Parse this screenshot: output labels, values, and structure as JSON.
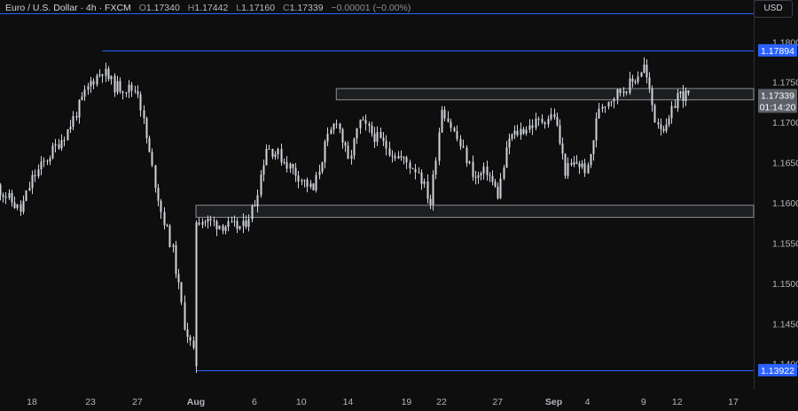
{
  "header": {
    "symbol": "Euro / U.S. Dollar · 4h · FXCM",
    "open_label": "O",
    "open": "1.17340",
    "high_label": "H",
    "high": "1.17442",
    "low_label": "L",
    "low": "1.17160",
    "close_label": "C",
    "close": "1.17339",
    "change": "−0.00001 (−0.00%)"
  },
  "currency_button": "USD",
  "colors": {
    "background": "#0e0e0e",
    "candle": "#d1d4dc",
    "horizontal_line": "#2962ff",
    "zone_border": "#8a8d93",
    "zone_fill": "#2a2c30",
    "label_blue": "#2962ff",
    "label_grey": "#5d6068"
  },
  "chart_data": {
    "type": "candlestick",
    "symbol": "EURUSD",
    "timeframe": "4h",
    "x_tick_labels": [
      "18",
      "23",
      "27",
      "Aug",
      "6",
      "10",
      "14",
      "19",
      "22",
      "27",
      "Sep",
      "4",
      "9",
      "12",
      "17"
    ],
    "y_tick_labels": [
      "1.18000",
      "1.17500",
      "1.17000",
      "1.16500",
      "1.16000",
      "1.15500",
      "1.15000",
      "1.14500",
      "1.14000"
    ],
    "ylim": [
      1.1392,
      1.1808
    ],
    "price_labels": [
      {
        "text": "1.17894",
        "value": 1.17894,
        "style": "blue"
      },
      {
        "text": "1.17339",
        "value": 1.17339,
        "style": "grey"
      },
      {
        "text": "01:14:20",
        "value": 1.17339,
        "style": "grey-countdown"
      },
      {
        "text": "1.13922",
        "value": 1.13922,
        "style": "blue"
      }
    ],
    "horizontal_lines": [
      {
        "value": 1.17894,
        "from_date": "Jul 24"
      },
      {
        "value": 1.13922,
        "from_date": "Aug 1"
      }
    ],
    "zones": [
      {
        "from_date": "Aug 13",
        "top": 1.1742,
        "bottom": 1.1728
      },
      {
        "from_date": "Aug 1",
        "top": 1.1597,
        "bottom": 1.1582
      }
    ],
    "close_path": [
      {
        "date": "Jul 15",
        "close": 1.162
      },
      {
        "date": "Jul 17",
        "close": 1.159
      },
      {
        "date": "Jul 18",
        "close": 1.163
      },
      {
        "date": "Jul 21",
        "close": 1.169
      },
      {
        "date": "Jul 22",
        "close": 1.172
      },
      {
        "date": "Jul 23",
        "close": 1.175
      },
      {
        "date": "Jul 24",
        "close": 1.1765
      },
      {
        "date": "Jul 25",
        "close": 1.1745
      },
      {
        "date": "Jul 27",
        "close": 1.174
      },
      {
        "date": "Jul 28",
        "close": 1.166
      },
      {
        "date": "Jul 29",
        "close": 1.159
      },
      {
        "date": "Jul 30",
        "close": 1.154
      },
      {
        "date": "Jul 31",
        "close": 1.145
      },
      {
        "date": "Aug 1",
        "close": 1.14
      },
      {
        "date": "Aug 1",
        "close": 1.158
      },
      {
        "date": "Aug 4",
        "close": 1.157
      },
      {
        "date": "Aug 5",
        "close": 1.157
      },
      {
        "date": "Aug 6",
        "close": 1.16
      },
      {
        "date": "Aug 7",
        "close": 1.167
      },
      {
        "date": "Aug 8",
        "close": 1.166
      },
      {
        "date": "Aug 11",
        "close": 1.1615
      },
      {
        "date": "Aug 12",
        "close": 1.167
      },
      {
        "date": "Aug 13",
        "close": 1.1705
      },
      {
        "date": "Aug 14",
        "close": 1.165
      },
      {
        "date": "Aug 15",
        "close": 1.17
      },
      {
        "date": "Aug 18",
        "close": 1.166
      },
      {
        "date": "Aug 19",
        "close": 1.165
      },
      {
        "date": "Aug 20",
        "close": 1.164
      },
      {
        "date": "Aug 21",
        "close": 1.16
      },
      {
        "date": "Aug 22",
        "close": 1.172
      },
      {
        "date": "Aug 25",
        "close": 1.163
      },
      {
        "date": "Aug 26",
        "close": 1.164
      },
      {
        "date": "Aug 27",
        "close": 1.161
      },
      {
        "date": "Aug 28",
        "close": 1.168
      },
      {
        "date": "Aug 29",
        "close": 1.169
      },
      {
        "date": "Sep 1",
        "close": 1.171
      },
      {
        "date": "Sep 2",
        "close": 1.164
      },
      {
        "date": "Sep 3",
        "close": 1.165
      },
      {
        "date": "Sep 4",
        "close": 1.164
      },
      {
        "date": "Sep 5",
        "close": 1.172
      },
      {
        "date": "Sep 8",
        "close": 1.175
      },
      {
        "date": "Sep 9",
        "close": 1.177
      },
      {
        "date": "Sep 10",
        "close": 1.1705
      },
      {
        "date": "Sep 11",
        "close": 1.169
      },
      {
        "date": "Sep 12",
        "close": 1.1735
      },
      {
        "date": "Sep 13",
        "close": 1.1733
      }
    ]
  }
}
